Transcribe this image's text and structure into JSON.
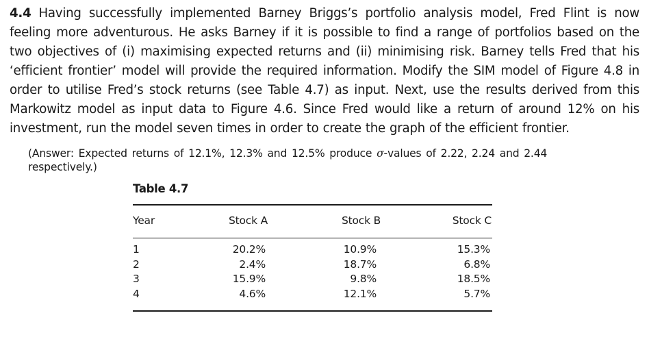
{
  "exercise": {
    "number": "4.4",
    "text": "Having successfully implemented Barney Briggs’s portfolio analysis model, Fred Flint is now feeling more adventurous. He asks Barney if it is possible to find a range of portfolios based on the two objectives of (i) maximising expected returns and (ii) minimising risk. Barney tells Fred that his ‘efficient frontier’ model will provide the required information. Modify the SIM model of Figure 4.8 in order to utilise Fred’s stock returns (see Table 4.7) as input. Next, use the results derived from this Markowitz model as input data to Figure 4.6. Since Fred would like a return of around 12% on his investment, run the model seven times in order to create the graph of the efficient frontier."
  },
  "answer": {
    "before_sigma": "(Answer: Expected returns of 12.1%, 12.3% and 12.5% produce ",
    "sigma": "σ",
    "after_sigma": "-values of 2.22, 2.24 and 2.44 respectively.)"
  },
  "table": {
    "caption": "Table 4.7",
    "headers": [
      "Year",
      "Stock A",
      "Stock B",
      "Stock C"
    ],
    "rows": [
      [
        "1",
        "20.2%",
        "10.9%",
        "15.3%"
      ],
      [
        "2",
        "2.4%",
        "18.7%",
        "6.8%"
      ],
      [
        "3",
        "15.9%",
        "9.8%",
        "18.5%"
      ],
      [
        "4",
        "4.6%",
        "12.1%",
        "5.7%"
      ]
    ]
  }
}
